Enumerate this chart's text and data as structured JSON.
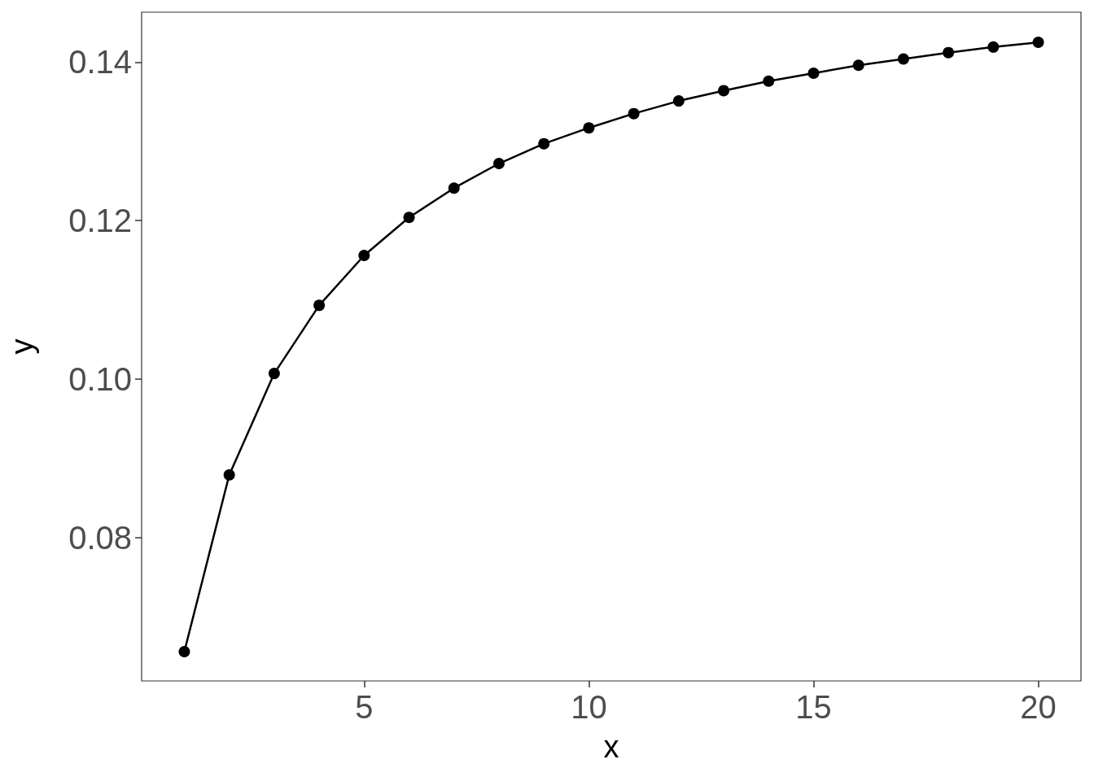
{
  "chart_data": {
    "type": "line",
    "xlabel": "x",
    "ylabel": "y",
    "x": [
      1,
      2,
      3,
      4,
      5,
      6,
      7,
      8,
      9,
      10,
      11,
      12,
      13,
      14,
      15,
      16,
      17,
      18,
      19,
      20
    ],
    "series": [
      {
        "color": "#000000",
        "values": [
          0.0656,
          0.0879,
          0.1007,
          0.1093,
          0.1156,
          0.1204,
          0.1241,
          0.1272,
          0.1297,
          0.1317,
          0.1335,
          0.1351,
          0.1364,
          0.1376,
          0.1386,
          0.1396,
          0.1404,
          0.1412,
          0.1419,
          0.1425
        ]
      }
    ],
    "xlim": [
      0.05,
      20.95
    ],
    "xticks": [
      5,
      10,
      15,
      20
    ],
    "ylim": [
      0.0619,
      0.1463
    ],
    "yticks": [
      {
        "value": 0.08,
        "label": "0.08"
      },
      {
        "value": 0.1,
        "label": "0.10"
      },
      {
        "value": 0.12,
        "label": "0.12"
      },
      {
        "value": 0.14,
        "label": "0.14"
      }
    ],
    "marker": "circle",
    "line_style": "solid"
  }
}
